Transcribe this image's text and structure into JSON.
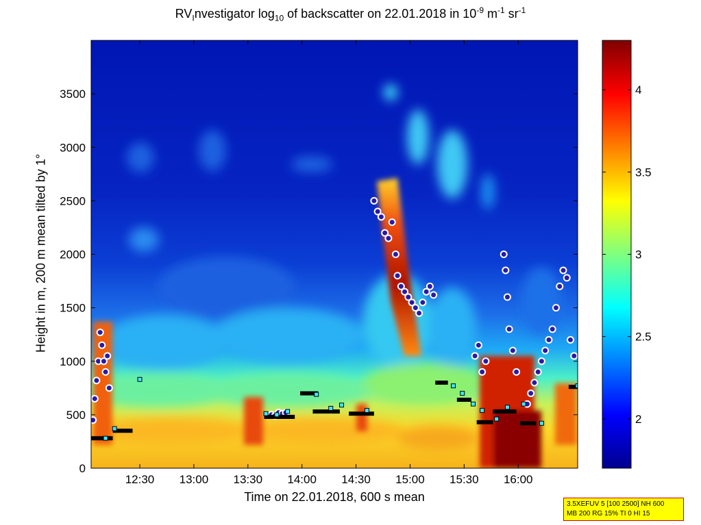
{
  "chart_data": {
    "type": "heatmap",
    "title_parts": {
      "t1": "RV",
      "t2": "I",
      "t3": "nvestigator log",
      "t4": "10",
      "t5": " of backscatter on 22.01.2018 in 10",
      "t6": "-9",
      "t7": " m",
      "t8": "-1",
      "t9": " sr",
      "t10": "-1"
    },
    "xlabel": "Time on 22.01.2018, 600 s mean",
    "ylabel": "Height in m, 200 m mean tilted by 1°",
    "x_ticks": [
      "12:30",
      "13:00",
      "13:30",
      "14:00",
      "14:30",
      "15:00",
      "15:30",
      "16:00"
    ],
    "x_tick_values": [
      750,
      780,
      810,
      840,
      870,
      900,
      930,
      960
    ],
    "xlim": [
      723,
      993
    ],
    "y_ticks": [
      "0",
      "500",
      "1000",
      "1500",
      "2000",
      "2500",
      "3000",
      "3500"
    ],
    "y_tick_values": [
      0,
      500,
      1000,
      1500,
      2000,
      2500,
      3000,
      3500
    ],
    "ylim": [
      0,
      4000
    ],
    "colorbar": {
      "ticks": [
        "2",
        "2.5",
        "3",
        "3.5",
        "4"
      ],
      "tick_values": [
        2,
        2.5,
        3,
        3.5,
        4
      ],
      "range": [
        1.7,
        4.3
      ],
      "colormap": "jet"
    },
    "cloud_top_points": [
      [
        724,
        450
      ],
      [
        725,
        650
      ],
      [
        726,
        820
      ],
      [
        727,
        1000
      ],
      [
        728,
        1270
      ],
      [
        729,
        1150
      ],
      [
        730,
        1000
      ],
      [
        731,
        900
      ],
      [
        732,
        1050
      ],
      [
        733,
        750
      ],
      [
        823,
        500
      ],
      [
        825,
        490
      ],
      [
        827,
        520
      ],
      [
        829,
        510
      ],
      [
        831,
        520
      ],
      [
        880,
        2500
      ],
      [
        882,
        2400
      ],
      [
        884,
        2350
      ],
      [
        886,
        2200
      ],
      [
        888,
        2150
      ],
      [
        890,
        2300
      ],
      [
        892,
        2000
      ],
      [
        893,
        1800
      ],
      [
        895,
        1700
      ],
      [
        897,
        1650
      ],
      [
        899,
        1600
      ],
      [
        901,
        1550
      ],
      [
        903,
        1500
      ],
      [
        905,
        1450
      ],
      [
        907,
        1550
      ],
      [
        909,
        1650
      ],
      [
        911,
        1700
      ],
      [
        913,
        1620
      ],
      [
        936,
        1050
      ],
      [
        938,
        1150
      ],
      [
        940,
        900
      ],
      [
        942,
        1000
      ],
      [
        952,
        2000
      ],
      [
        953,
        1850
      ],
      [
        954,
        1600
      ],
      [
        955,
        1300
      ],
      [
        957,
        1100
      ],
      [
        959,
        900
      ],
      [
        965,
        600
      ],
      [
        967,
        700
      ],
      [
        969,
        800
      ],
      [
        971,
        900
      ],
      [
        973,
        1000
      ],
      [
        975,
        1100
      ],
      [
        977,
        1200
      ],
      [
        979,
        1300
      ],
      [
        981,
        1500
      ],
      [
        983,
        1700
      ],
      [
        985,
        1850
      ],
      [
        987,
        1780
      ],
      [
        989,
        1200
      ],
      [
        991,
        1050
      ]
    ],
    "cloud_base_segments": [
      [
        723,
        735,
        280
      ],
      [
        735,
        746,
        350
      ],
      [
        819,
        836,
        480
      ],
      [
        839,
        849,
        700
      ],
      [
        846,
        861,
        530
      ],
      [
        866,
        880,
        510
      ],
      [
        914,
        921,
        800
      ],
      [
        926,
        934,
        640
      ],
      [
        937,
        946,
        430
      ],
      [
        946,
        959,
        530
      ],
      [
        961,
        970,
        420
      ],
      [
        988,
        993,
        760
      ]
    ],
    "cyan_squares": [
      [
        731,
        280
      ],
      [
        736,
        370
      ],
      [
        750,
        830
      ],
      [
        820,
        510
      ],
      [
        826,
        500
      ],
      [
        832,
        530
      ],
      [
        848,
        690
      ],
      [
        856,
        560
      ],
      [
        862,
        590
      ],
      [
        876,
        540
      ],
      [
        924,
        770
      ],
      [
        929,
        700
      ],
      [
        935,
        600
      ],
      [
        940,
        540
      ],
      [
        948,
        460
      ],
      [
        954,
        570
      ],
      [
        963,
        600
      ],
      [
        973,
        420
      ],
      [
        993,
        770
      ]
    ]
  },
  "infobox": {
    "line1": "3.5XEFUV 5 [100 2500] NH 600",
    "line2": "MB 200 RG 15% TI 0 HI 15"
  }
}
